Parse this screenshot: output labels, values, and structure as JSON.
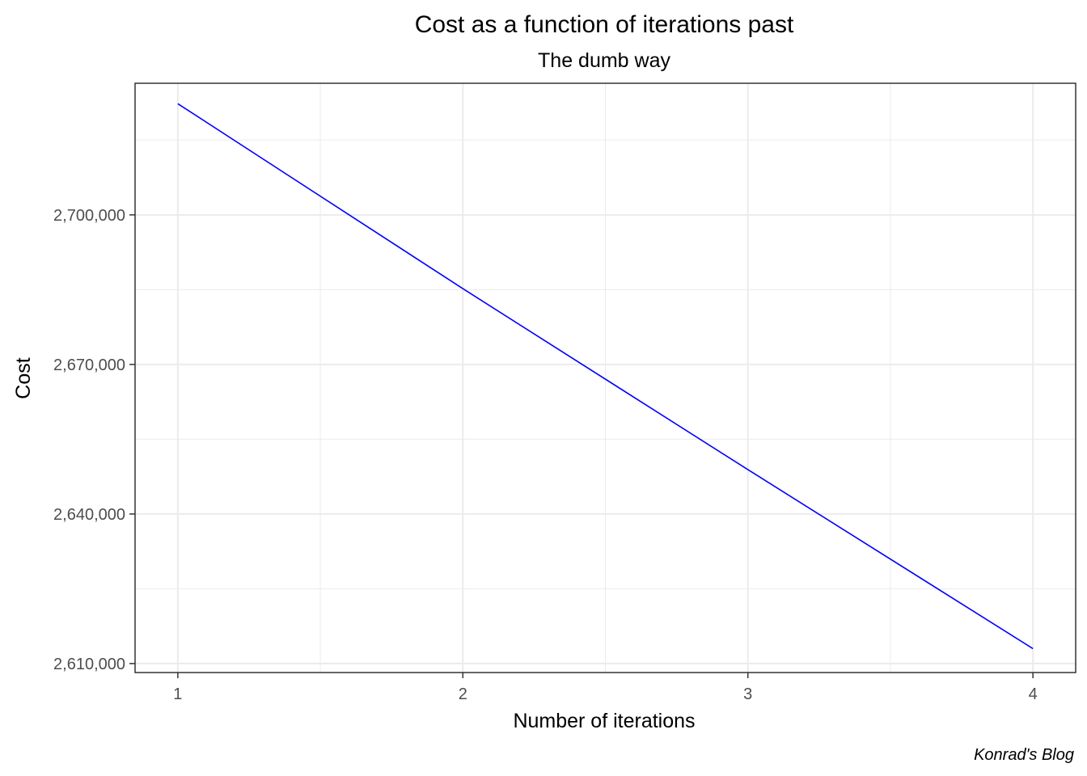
{
  "chart_data": {
    "type": "line",
    "title": "Cost as a function of iterations past",
    "subtitle": "The dumb way",
    "xlabel": "Number of iterations",
    "ylabel": "Cost",
    "caption": "Konrad's Blog",
    "x": [
      1,
      2,
      3,
      4
    ],
    "series": [
      {
        "color": "#0000ff",
        "values": [
          2722300,
          2685200,
          2648900,
          2613000
        ]
      }
    ],
    "xlim": [
      0.85,
      4.15
    ],
    "ylim": [
      2608200,
      2726400
    ],
    "x_ticks": [
      1,
      2,
      3,
      4
    ],
    "x_tick_labels": [
      "1",
      "2",
      "3",
      "4"
    ],
    "y_ticks": [
      2610000,
      2640000,
      2670000,
      2700000
    ],
    "y_tick_labels": [
      "2,610,000",
      "2,640,000",
      "2,670,000",
      "2,700,000"
    ],
    "x_minor_ticks": [
      1.5,
      2.5,
      3.5
    ],
    "y_minor_ticks": [
      2625000,
      2655000,
      2685000,
      2715000
    ],
    "grid": true,
    "legend": "none",
    "line_color": "#0000ff",
    "grid_color": "#ebebeb",
    "panel_border_color": "#333333"
  }
}
